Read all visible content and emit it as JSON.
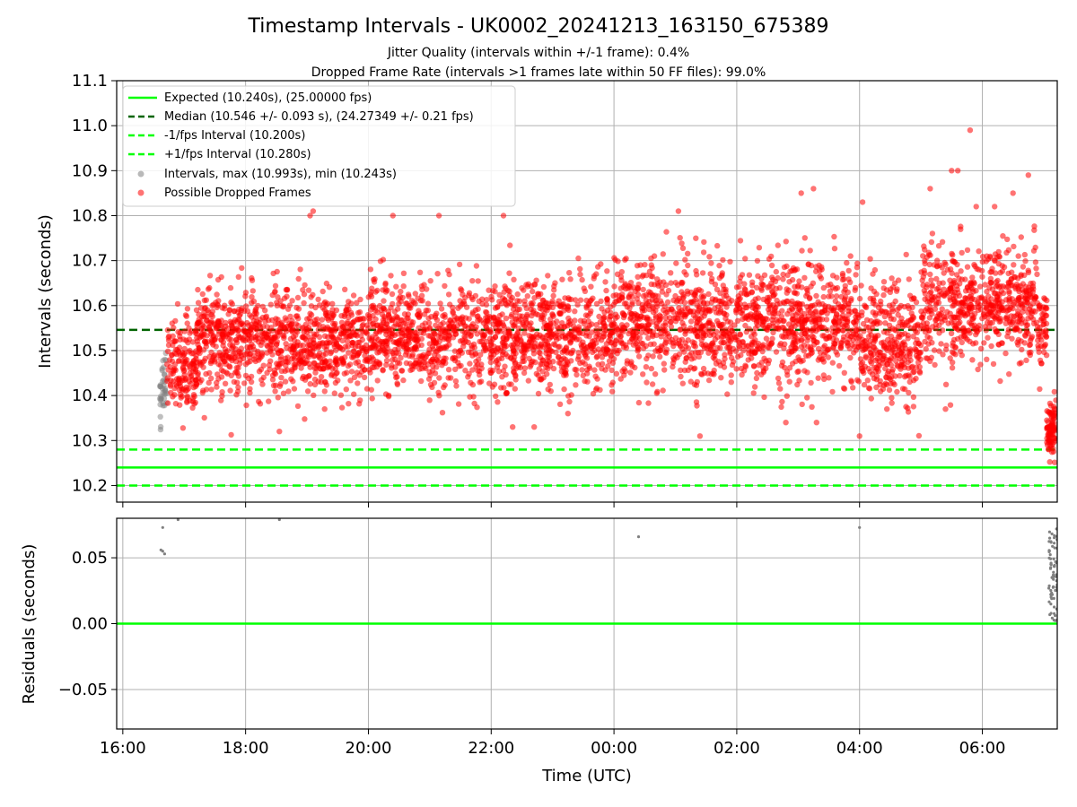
{
  "chart_data": [
    {
      "type": "scatter",
      "title": "Timestamp Intervals - UK0002_20241213_163150_675389",
      "subtitle_lines": [
        "Jitter Quality (intervals within +/-1 frame): 0.4%",
        "Dropped Frame Rate (intervals >1 frames late within 50 FF files): 99.0%"
      ],
      "xlabel": "",
      "ylabel": "Intervals (seconds)",
      "xlim_hours": [
        15.9,
        31.22
      ],
      "ylim": [
        10.163,
        11.1
      ],
      "yticks": [
        10.2,
        10.3,
        10.4,
        10.5,
        10.6,
        10.7,
        10.8,
        10.9,
        11.0,
        11.1
      ],
      "ytick_labels": [
        "10.2",
        "10.3",
        "10.4",
        "10.5",
        "10.6",
        "10.7",
        "10.8",
        "10.9",
        "11.0",
        "11.1"
      ],
      "xticks_hours": [
        16,
        18,
        20,
        22,
        24,
        26,
        28,
        30
      ],
      "grid": true,
      "legend_position": "upper-left",
      "reference_lines": [
        {
          "label": "Expected (10.240s), (25.00000 fps)",
          "value": 10.24,
          "style": "solid",
          "color": "#00ff00"
        },
        {
          "label": "Median (10.546 +/- 0.093 s), (24.27349 +/- 0.21 fps)",
          "value": 10.546,
          "style": "dashed",
          "color": "#006400"
        },
        {
          "label": "-1/fps Interval (10.200s)",
          "value": 10.2,
          "style": "dashed",
          "color": "#00ff00"
        },
        {
          "label": "+1/fps Interval (10.280s)",
          "value": 10.28,
          "style": "dashed",
          "color": "#00ff00"
        }
      ],
      "series": [
        {
          "name": "Intervals, max (10.993s), min (10.243s)",
          "color": "#808080",
          "alpha": 0.5,
          "time_range_hours": [
            16.6,
            31.2
          ],
          "max": 10.993,
          "min": 10.243,
          "segments": [
            {
              "t_start": 16.6,
              "t_end": 16.72,
              "mean": 10.41,
              "sd": 0.06,
              "count": 40
            }
          ]
        },
        {
          "name": "Possible Dropped Frames",
          "color": "#ff0000",
          "alpha": 0.55,
          "time_range_hours": [
            16.72,
            31.2
          ],
          "max": 10.993,
          "segments": [
            {
              "t_start": 16.72,
              "t_end": 17.2,
              "mean": 10.47,
              "sd": 0.075,
              "count": 160
            },
            {
              "t_start": 17.2,
              "t_end": 20.0,
              "mean": 10.52,
              "sd": 0.082,
              "count": 950
            },
            {
              "t_start": 20.0,
              "t_end": 24.0,
              "mean": 10.535,
              "sd": 0.085,
              "count": 1300
            },
            {
              "t_start": 24.0,
              "t_end": 28.0,
              "mean": 10.565,
              "sd": 0.095,
              "count": 1300
            },
            {
              "t_start": 28.0,
              "t_end": 29.0,
              "mean": 10.52,
              "sd": 0.09,
              "count": 330
            },
            {
              "t_start": 29.0,
              "t_end": 30.9,
              "mean": 10.6,
              "sd": 0.09,
              "count": 620
            },
            {
              "t_start": 30.9,
              "t_end": 31.05,
              "mean": 10.55,
              "sd": 0.08,
              "count": 50
            },
            {
              "t_start": 31.05,
              "t_end": 31.2,
              "mean": 10.33,
              "sd": 0.05,
              "count": 90
            }
          ],
          "outliers": [
            {
              "t": 19.05,
              "y": 10.8
            },
            {
              "t": 19.1,
              "y": 10.81
            },
            {
              "t": 20.4,
              "y": 10.8
            },
            {
              "t": 21.15,
              "y": 10.8
            },
            {
              "t": 22.2,
              "y": 10.8
            },
            {
              "t": 25.05,
              "y": 10.81
            },
            {
              "t": 27.05,
              "y": 10.85
            },
            {
              "t": 27.25,
              "y": 10.86
            },
            {
              "t": 28.05,
              "y": 10.83
            },
            {
              "t": 29.15,
              "y": 10.86
            },
            {
              "t": 29.5,
              "y": 10.9
            },
            {
              "t": 29.6,
              "y": 10.9
            },
            {
              "t": 29.9,
              "y": 10.82
            },
            {
              "t": 30.2,
              "y": 10.82
            },
            {
              "t": 30.5,
              "y": 10.85
            },
            {
              "t": 30.75,
              "y": 10.89
            },
            {
              "t": 29.8,
              "y": 10.99
            },
            {
              "t": 26.8,
              "y": 10.34
            },
            {
              "t": 27.3,
              "y": 10.34
            },
            {
              "t": 28.0,
              "y": 10.31
            },
            {
              "t": 29.4,
              "y": 10.37
            },
            {
              "t": 25.4,
              "y": 10.31
            },
            {
              "t": 22.35,
              "y": 10.33
            },
            {
              "t": 18.55,
              "y": 10.32
            },
            {
              "t": 23.25,
              "y": 10.36
            },
            {
              "t": 22.7,
              "y": 10.33
            }
          ]
        }
      ]
    },
    {
      "type": "scatter",
      "xlabel": "Time (UTC)",
      "ylabel": "Residuals (seconds)",
      "xlim_hours": [
        15.9,
        31.22
      ],
      "ylim": [
        -0.08,
        0.08
      ],
      "yticks": [
        -0.05,
        0.0,
        0.05
      ],
      "ytick_labels": [
        "−0.05",
        "0.00",
        "0.05"
      ],
      "xticks_hours": [
        16,
        18,
        20,
        22,
        24,
        26,
        28,
        30
      ],
      "xtick_labels": [
        "16:00",
        "18:00",
        "20:00",
        "22:00",
        "00:00",
        "02:00",
        "04:00",
        "06:00"
      ],
      "grid": true,
      "zero_line_color": "#00ff00",
      "series": [
        {
          "name": "",
          "color": "#808080",
          "points": [
            {
              "t": 16.65,
              "y": 0.073
            },
            {
              "t": 16.62,
              "y": 0.056
            },
            {
              "t": 16.65,
              "y": 0.055
            },
            {
              "t": 16.68,
              "y": 0.053
            },
            {
              "t": 16.9,
              "y": 0.079
            },
            {
              "t": 18.55,
              "y": 0.079
            },
            {
              "t": 24.4,
              "y": 0.066
            },
            {
              "t": 28.0,
              "y": 0.073
            }
          ],
          "dense_cluster": {
            "t_start": 31.08,
            "t_end": 31.22,
            "y_min": 0.002,
            "y_max": 0.072,
            "count": 70
          }
        }
      ]
    }
  ]
}
